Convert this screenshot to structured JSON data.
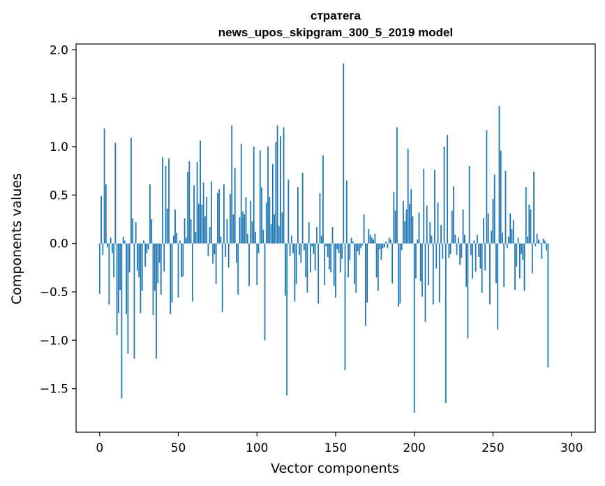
{
  "chart_data": {
    "type": "bar",
    "title_line1": "стратега",
    "title_line2": "news_upos_skipgram_300_5_2019 model",
    "xlabel": "Vector components",
    "ylabel": "Components values",
    "xlim": [
      -15,
      315
    ],
    "ylim": [
      -1.95,
      2.06
    ],
    "xticks": [
      0,
      50,
      100,
      150,
      200,
      250,
      300
    ],
    "yticks": [
      -1.5,
      -1.0,
      -0.5,
      0.0,
      0.5,
      1.0,
      1.5,
      2.0
    ],
    "ytick_labels": [
      "−1.5",
      "−1.0",
      "−0.5",
      "0.0",
      "0.5",
      "1.0",
      "1.5",
      "2.0"
    ],
    "grid": false,
    "bar_color": "#1f77b4",
    "values": [
      -0.52,
      0.49,
      -0.12,
      1.19,
      0.61,
      -0.04,
      -0.63,
      0.06,
      -0.1,
      -0.35,
      1.04,
      -0.95,
      -0.72,
      -0.48,
      -1.6,
      0.07,
      0.03,
      -0.73,
      -1.14,
      -0.3,
      1.09,
      0.26,
      -1.19,
      0.22,
      -0.28,
      -0.35,
      -0.72,
      -0.49,
      0.03,
      -0.24,
      -0.1,
      -0.06,
      0.61,
      0.25,
      -0.74,
      -0.49,
      -1.19,
      -0.41,
      -0.2,
      -0.53,
      0.89,
      -0.29,
      0.8,
      0.36,
      0.88,
      -0.73,
      -0.61,
      0.08,
      0.35,
      0.11,
      -0.56,
      0.03,
      -0.35,
      -0.34,
      0.26,
      0.06,
      0.74,
      0.85,
      0.25,
      -0.6,
      0.6,
      0.12,
      0.84,
      0.41,
      1.06,
      0.4,
      0.63,
      0.28,
      0.48,
      -0.13,
      0.17,
      0.64,
      -0.21,
      -0.11,
      -0.42,
      0.52,
      0.56,
      0.07,
      -0.71,
      0.61,
      -0.14,
      0.25,
      -0.25,
      0.51,
      1.22,
      0.3,
      0.78,
      -0.2,
      -0.53,
      0.27,
      1.03,
      0.33,
      0.3,
      0.48,
      0.1,
      -0.44,
      0.44,
      0.23,
      1.0,
      0.12,
      -0.43,
      -0.1,
      0.96,
      0.58,
      0.14,
      -1.0,
      0.42,
      1.0,
      0.48,
      0.2,
      0.82,
      0.3,
      1.05,
      1.22,
      0.18,
      1.11,
      0.32,
      1.2,
      -0.54,
      -1.57,
      0.66,
      -0.13,
      0.08,
      -0.1,
      -0.6,
      -0.42,
      0.58,
      -0.12,
      -0.2,
      0.73,
      -0.07,
      -0.35,
      -0.51,
      0.22,
      -0.3,
      -0.03,
      -0.11,
      -0.28,
      0.17,
      -0.62,
      0.52,
      0.08,
      0.91,
      -0.43,
      -0.03,
      -0.14,
      -0.27,
      -0.3,
      0.17,
      -0.44,
      -0.56,
      -0.06,
      -0.1,
      -0.3,
      -0.16,
      1.86,
      -1.31,
      0.65,
      -0.35,
      -0.17,
      0.06,
      0.02,
      -0.42,
      -0.51,
      -0.08,
      -0.12,
      -0.05,
      -0.02,
      0.3,
      -0.85,
      -0.61,
      0.15,
      0.09,
      0.06,
      0.04,
      0.1,
      -0.35,
      -0.49,
      -0.06,
      -0.17,
      -0.05,
      -0.04,
      0.02,
      -0.05,
      0.06,
      0.04,
      -0.41,
      0.53,
      0.34,
      1.2,
      -0.65,
      -0.62,
      -0.07,
      0.44,
      0.23,
      0.35,
      0.98,
      0.41,
      0.56,
      0.28,
      -1.75,
      -0.36,
      0.04,
      0.32,
      -0.39,
      -0.55,
      0.77,
      -0.81,
      0.39,
      -0.43,
      0.22,
      0.08,
      -0.63,
      0.76,
      -0.26,
      0.42,
      -0.61,
      0.19,
      -0.16,
      1.0,
      -1.65,
      1.12,
      -0.15,
      -0.11,
      0.34,
      0.59,
      0.09,
      -0.12,
      0.06,
      -0.22,
      -0.15,
      0.35,
      0.09,
      -0.45,
      -0.98,
      0.8,
      -0.12,
      -0.36,
      0.03,
      -0.29,
      0.09,
      -0.14,
      -0.26,
      -0.51,
      0.26,
      -0.28,
      1.17,
      0.31,
      -0.63,
      0.13,
      0.46,
      0.71,
      -0.41,
      -0.89,
      1.42,
      0.96,
      0.11,
      -0.45,
      0.75,
      -0.05,
      0.07,
      0.31,
      0.15,
      0.24,
      -0.48,
      -0.24,
      0.06,
      -0.36,
      -0.11,
      -0.17,
      -0.49,
      0.58,
      0.07,
      0.4,
      0.35,
      -0.31,
      0.74,
      -0.03,
      0.1,
      0.04,
      0.01,
      -0.16,
      0.05,
      0.03,
      -0.07,
      -1.28
    ]
  }
}
